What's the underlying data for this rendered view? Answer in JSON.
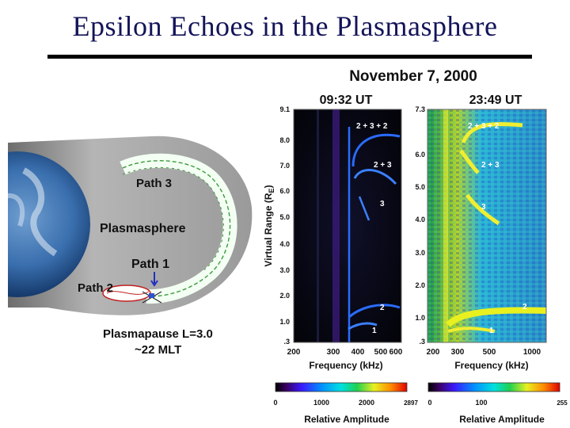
{
  "slide": {
    "title": "Epsilon Echoes in the Plasmasphere"
  },
  "diagram": {
    "labels": {
      "path3": "Path 3",
      "plasmasphere": "Plasmasphere",
      "path1": "Path 1",
      "path2": "Path 2",
      "plasmapause": "Plasmapause L=3.0",
      "mlt": "~22 MLT"
    }
  },
  "figure": {
    "date": "November 7, 2000",
    "panels": [
      {
        "time": "09:32 UT",
        "colormap_max": "2897"
      },
      {
        "time": "23:49 UT",
        "colormap_max": "255"
      }
    ],
    "yaxis_label": "Virtual Range (R",
    "yaxis_sub": "E",
    "yaxis_close": ")",
    "xaxis_label": "Frequency (kHz)",
    "colorbar_label": "Relative Amplitude",
    "left_yticks": [
      "9.1",
      "8.0",
      "7.0",
      "6.0",
      "5.0",
      "4.0",
      "3.0",
      "2.0",
      "1.0",
      ".3"
    ],
    "left_xticks": [
      "200",
      "300",
      "400",
      "500",
      "600"
    ],
    "right_yticks": [
      "7.3",
      "6.0",
      "5.0",
      "4.0",
      "3.0",
      "2.0",
      "1.0",
      ".3"
    ],
    "right_xticks": [
      "200",
      "300",
      "500",
      "1000"
    ],
    "left_cbar_ticks": [
      "0",
      "1000",
      "2000"
    ],
    "right_cbar_ticks": [
      "0",
      "100",
      "255"
    ],
    "echo_labels_left": [
      "2 + 3 + 2",
      "2 + 3",
      "3",
      "2",
      "1"
    ],
    "echo_labels_right": [
      "2 + 3 + 2",
      "2 + 3",
      "3",
      "2",
      "1"
    ],
    "colors": {
      "title": "#14145a",
      "echo_blue": "#2a6cff",
      "echo_yellow": "#f0ee30",
      "gray": "#a9a9a9"
    }
  }
}
